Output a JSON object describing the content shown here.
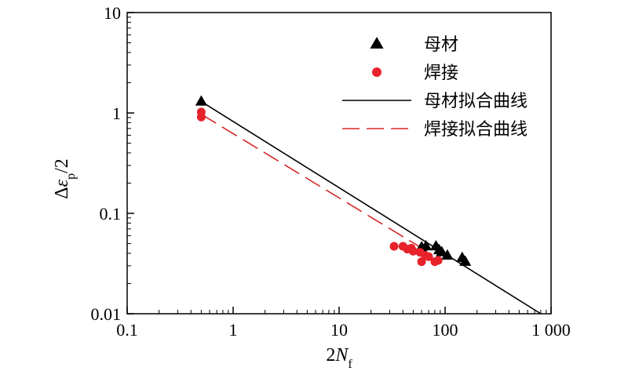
{
  "chart_data": {
    "type": "scatter",
    "xscale": "log",
    "yscale": "log",
    "xlim": [
      0.1,
      1000
    ],
    "ylim": [
      0.01,
      10
    ],
    "grid": false,
    "legend_position": "top-right",
    "xlabel": {
      "main": "2",
      "italic": "N",
      "sub": "f"
    },
    "ylabel": {
      "prefix": "Δ",
      "italic": "ε",
      "sub": "p",
      "suffix": "/2"
    },
    "x_ticks": [
      {
        "value": 0.1,
        "label": "0.1"
      },
      {
        "value": 1,
        "label": "1"
      },
      {
        "value": 10,
        "label": "10"
      },
      {
        "value": 100,
        "label": "100"
      },
      {
        "value": 1000,
        "label": "1 000"
      }
    ],
    "y_ticks": [
      {
        "value": 0.01,
        "label": "0.01"
      },
      {
        "value": 0.1,
        "label": "0.1"
      },
      {
        "value": 1,
        "label": "1"
      },
      {
        "value": 10,
        "label": "10"
      }
    ],
    "series": [
      {
        "name": "母材",
        "kind": "scatter",
        "marker": "triangle",
        "color": "#000000",
        "points": [
          [
            0.5,
            1.3
          ],
          [
            60,
            0.046
          ],
          [
            66,
            0.047
          ],
          [
            82,
            0.047
          ],
          [
            88,
            0.043
          ],
          [
            93,
            0.041
          ],
          [
            105,
            0.038
          ],
          [
            145,
            0.036
          ],
          [
            155,
            0.033
          ]
        ]
      },
      {
        "name": "焊接",
        "kind": "scatter",
        "marker": "circle",
        "color": "#e8222a",
        "points": [
          [
            0.5,
            1.02
          ],
          [
            0.5,
            0.91
          ],
          [
            33,
            0.047
          ],
          [
            40,
            0.047
          ],
          [
            44,
            0.044
          ],
          [
            48,
            0.045
          ],
          [
            50,
            0.042
          ],
          [
            58,
            0.041
          ],
          [
            60,
            0.033
          ],
          [
            65,
            0.038
          ],
          [
            70,
            0.037
          ],
          [
            80,
            0.033
          ],
          [
            86,
            0.034
          ]
        ]
      },
      {
        "name": "母材拟合曲线",
        "kind": "line",
        "style": "solid",
        "color": "#000000",
        "points": [
          [
            0.5,
            1.3
          ],
          [
            800,
            0.01
          ]
        ]
      },
      {
        "name": "焊接拟合曲线",
        "kind": "line",
        "style": "dashed",
        "color": "#d62728",
        "points": [
          [
            0.5,
            0.97
          ],
          [
            70,
            0.041
          ]
        ]
      }
    ]
  }
}
